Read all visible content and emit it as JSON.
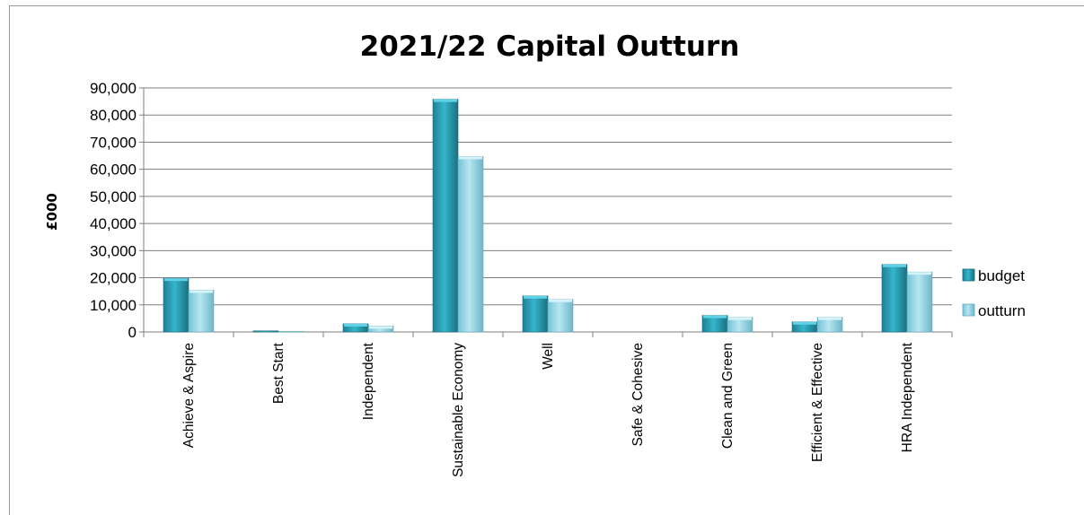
{
  "chart_data": {
    "type": "bar",
    "title": "2021/22 Capital Outturn",
    "ylabel": "£000",
    "xlabel": "",
    "ylim": [
      0,
      90000
    ],
    "yticks": [
      "0",
      "10,000",
      "20,000",
      "30,000",
      "40,000",
      "50,000",
      "60,000",
      "70,000",
      "80,000",
      "90,000"
    ],
    "grid": true,
    "legend_position": "right",
    "categories": [
      "Achieve & Aspire",
      "Best Start",
      "Independent",
      "Sustainable Economy",
      "Well",
      "Safe & Cohesive",
      "Clean and Green",
      "Efficient & Effective",
      "HRA Independent"
    ],
    "series": [
      {
        "name": "budget",
        "color": "#2a9db3",
        "values": [
          19800,
          400,
          3000,
          85800,
          13300,
          0,
          6100,
          3700,
          24900
        ]
      },
      {
        "name": "outturn",
        "color": "#8fd4e6",
        "values": [
          15400,
          200,
          2200,
          64700,
          12000,
          0,
          5400,
          5400,
          22100
        ]
      }
    ]
  }
}
